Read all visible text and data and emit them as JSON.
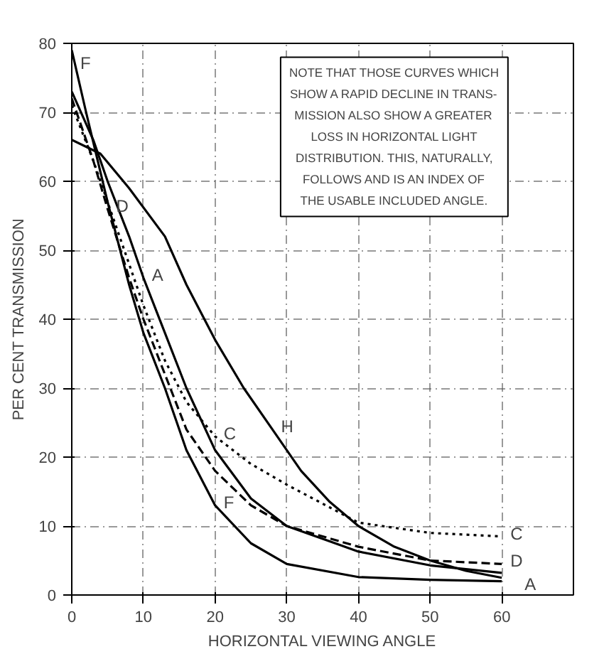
{
  "chart_data": {
    "type": "line",
    "xlabel": "HORIZONTAL VIEWING ANGLE",
    "ylabel": "PER CENT TRANSMISSION",
    "xlim": [
      0,
      70
    ],
    "ylim": [
      0,
      80
    ],
    "xticks": [
      0,
      10,
      20,
      30,
      40,
      50,
      60
    ],
    "yticks": [
      0,
      10,
      20,
      30,
      40,
      50,
      60,
      70,
      80
    ],
    "grid": true,
    "marker": "none",
    "series": [
      {
        "color": "#000000",
        "line_style": "solid",
        "x": [
          0,
          2,
          5,
          8,
          10,
          13,
          16,
          20,
          25,
          30,
          40,
          50,
          60
        ],
        "values": [
          79,
          70,
          57,
          45,
          38,
          30,
          21,
          13,
          7.5,
          4.5,
          2.6,
          2.2,
          2
        ]
      },
      {
        "color": "#000000",
        "line_style": "solid",
        "x": [
          0,
          3,
          5,
          8,
          10,
          13,
          16,
          20,
          25,
          30,
          40,
          50,
          60
        ],
        "values": [
          73,
          66,
          60,
          52,
          46,
          38,
          30,
          21,
          14,
          10,
          6.3,
          4.3,
          3.2
        ]
      },
      {
        "color": "#000000",
        "line_style": "dashed",
        "x": [
          0,
          3,
          5,
          8,
          10,
          13,
          16,
          20,
          25,
          30,
          40,
          50,
          60
        ],
        "values": [
          72,
          63,
          56,
          46,
          40,
          32,
          24,
          18,
          13,
          10,
          7,
          5,
          4.5
        ]
      },
      {
        "color": "#000000",
        "line_style": "dotted",
        "x": [
          0,
          3,
          5,
          8,
          10,
          13,
          16,
          20,
          25,
          30,
          40,
          50,
          60
        ],
        "values": [
          71,
          63,
          57,
          48,
          42,
          34,
          28,
          23,
          19,
          16,
          10.5,
          9,
          8.5
        ]
      },
      {
        "color": "#000000",
        "line_style": "solid",
        "x": [
          0,
          4,
          8,
          13,
          16,
          20,
          24,
          28,
          32,
          36,
          40,
          45,
          50,
          55,
          60
        ],
        "values": [
          66,
          64,
          59,
          52,
          45,
          37,
          30,
          24,
          18,
          13.5,
          10,
          7,
          5,
          3.5,
          2.5
        ]
      }
    ],
    "annotations": [
      {
        "text": "F",
        "x": 0,
        "y": 79
      },
      {
        "text": "D",
        "x": 5,
        "y": 56
      },
      {
        "text": "A",
        "x": 10,
        "y": 46
      },
      {
        "text": "C",
        "x": 20,
        "y": 23
      },
      {
        "text": "H",
        "x": 28,
        "y": 24
      },
      {
        "text": "F",
        "x": 20,
        "y": 13
      },
      {
        "text": "C",
        "x": 60,
        "y": 8.5
      },
      {
        "text": "D",
        "x": 60,
        "y": 4.5
      },
      {
        "text": "A",
        "x": 60,
        "y": 3.2
      },
      "NOTE THAT THOSE CURVES WHICH\nSHOW A RAPID DECLINE IN TRANS-\nMISSION ALSO SHOW A GREATER\nLOSS IN HORIZONTAL LIGHT\nDISTRIBUTION. THIS, NATURALLY,\nFOLLOWS AND IS AN INDEX OF\nTHE USABLE INCLUDED ANGLE."
    ]
  }
}
